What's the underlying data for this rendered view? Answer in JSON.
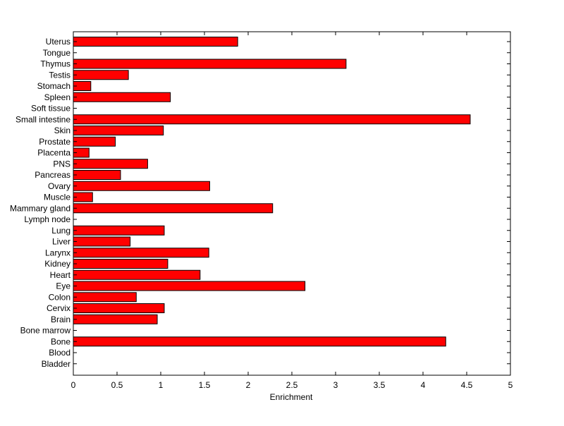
{
  "chart_data": {
    "type": "bar",
    "orientation": "horizontal",
    "categories": [
      "Bladder",
      "Blood",
      "Bone",
      "Bone marrow",
      "Brain",
      "Cervix",
      "Colon",
      "Eye",
      "Heart",
      "Kidney",
      "Larynx",
      "Liver",
      "Lung",
      "Lymph node",
      "Mammary gland",
      "Muscle",
      "Ovary",
      "Pancreas",
      "PNS",
      "Placenta",
      "Prostate",
      "Skin",
      "Small intestine",
      "Soft tissue",
      "Spleen",
      "Stomach",
      "Testis",
      "Thymus",
      "Tongue",
      "Uterus"
    ],
    "values": [
      0,
      0,
      4.26,
      0,
      0.96,
      1.04,
      0.72,
      2.65,
      1.45,
      1.08,
      1.55,
      0.65,
      1.04,
      0,
      2.28,
      0.22,
      1.56,
      0.54,
      0.85,
      0.18,
      0.48,
      1.03,
      4.54,
      0,
      1.11,
      0.2,
      0.63,
      3.12,
      0,
      1.88
    ],
    "title": "",
    "xlabel": "Enrichment",
    "ylabel": "",
    "xlim": [
      0,
      5
    ],
    "xticks": [
      "0",
      "0.5",
      "1",
      "1.5",
      "2",
      "2.5",
      "3",
      "3.5",
      "4",
      "4.5",
      "5"
    ],
    "grid": false,
    "colors": {
      "bar": "#ff0000",
      "bar_edge": "#000000",
      "axes": "#000000",
      "background": "#ffffff"
    }
  }
}
